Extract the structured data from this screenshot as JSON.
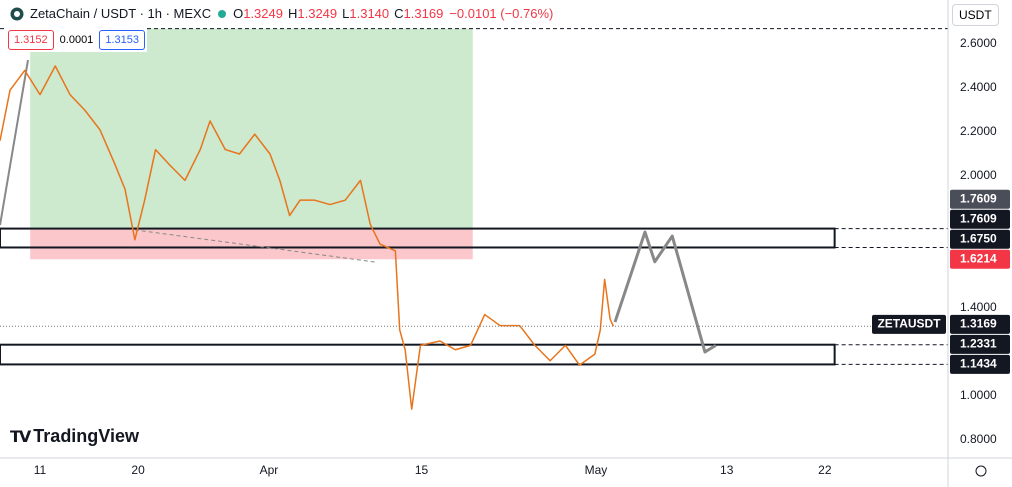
{
  "header": {
    "symbol": "ZetaChain / USDT · 1h · MEXC",
    "ohlc": [
      {
        "key": "O",
        "value": "1.3249"
      },
      {
        "key": "H",
        "value": "1.3249"
      },
      {
        "key": "L",
        "value": "1.3140"
      },
      {
        "key": "C",
        "value": "1.3169"
      }
    ],
    "change": "−0.0101 (−0.76%)",
    "bid": "1.3152",
    "spread": "0.0001",
    "ask": "1.3153",
    "currency": "USDT",
    "brand": "TradingView"
  },
  "chart_data": {
    "type": "line",
    "x": [
      6.33,
      7.25,
      8.6,
      10,
      11.4,
      12.75,
      14.1,
      15.5,
      16.9,
      17.8,
      18.7,
      19.6,
      20.6,
      21.9,
      23.3,
      24.7,
      25.6,
      27,
      28.3,
      29.7,
      31.1,
      32,
      32.9,
      33.85,
      35.2,
      36.6,
      38,
      39.4,
      40.3,
      41.2,
      42.6,
      43.0,
      43.5,
      44.1,
      44.9,
      46.7,
      48.1,
      49.5,
      50.8,
      52.2,
      54,
      55.4,
      56.8,
      58.2,
      59.5,
      60.9,
      61.4,
      61.8,
      62.3,
      62.6
    ],
    "series": [
      {
        "name": "ZETAUSDT",
        "color": "#e8741c",
        "values": [
          2.16,
          2.39,
          2.48,
          2.37,
          2.5,
          2.37,
          2.3,
          2.21,
          2.05,
          1.94,
          1.71,
          1.89,
          2.12,
          2.05,
          1.98,
          2.12,
          2.25,
          2.12,
          2.1,
          2.19,
          2.1,
          1.98,
          1.82,
          1.89,
          1.89,
          1.87,
          1.89,
          1.98,
          1.78,
          1.69,
          1.66,
          1.3,
          1.21,
          0.94,
          1.23,
          1.25,
          1.21,
          1.23,
          1.37,
          1.32,
          1.32,
          1.23,
          1.16,
          1.23,
          1.14,
          1.19,
          1.3,
          1.53,
          1.35,
          1.3169
        ]
      }
    ],
    "xlim": [
      6.33,
      93.3
    ],
    "ylim": [
      0.718,
      2.8
    ],
    "xticks": [
      {
        "value": 10,
        "label": "11"
      },
      {
        "value": 19,
        "label": "20"
      },
      {
        "value": 31,
        "label": "Apr"
      },
      {
        "value": 45,
        "label": "15"
      },
      {
        "value": 61,
        "label": "May"
      },
      {
        "value": 73,
        "label": "13"
      },
      {
        "value": 82,
        "label": "22"
      }
    ],
    "yticks": [
      {
        "value": 2.6,
        "label": "2.6000"
      },
      {
        "value": 2.4,
        "label": "2.4000"
      },
      {
        "value": 2.2,
        "label": "2.2000"
      },
      {
        "value": 2.0,
        "label": "2.0000"
      },
      {
        "value": 1.4,
        "label": "1.4000"
      },
      {
        "value": 1.0,
        "label": "1.0000"
      },
      {
        "value": 0.8,
        "label": "0.8000"
      }
    ],
    "grid": false,
    "position": {
      "start": 9.1,
      "end": 49.7,
      "target": 2.67,
      "entry": 1.7609,
      "stop": 1.6214
    },
    "zones": [
      {
        "start": 6.33,
        "end": 82.9,
        "top": 1.7609,
        "bottom": 1.675
      },
      {
        "start": 6.33,
        "end": 82.9,
        "top": 1.2331,
        "bottom": 1.1434
      }
    ],
    "lines": [
      {
        "x": [
          6.33,
          8.9
        ],
        "y": [
          1.777,
          2.527
        ]
      },
      {
        "x": [
          18.7,
          40.7
        ],
        "y": [
          1.755,
          1.609
        ]
      }
    ],
    "projection": {
      "x": [
        62.75,
        65.5,
        66.4,
        68,
        71,
        72
      ],
      "y": [
        1.336,
        1.745,
        1.61,
        1.727,
        1.2,
        1.23
      ]
    },
    "axis_labels": [
      {
        "value": 1.7609,
        "label": "1.7609",
        "color": "#4a4e59"
      },
      {
        "value": 1.7609,
        "label": "1.7609",
        "color": "#131722"
      },
      {
        "value": 1.675,
        "label": "1.6750",
        "color": "#131722"
      },
      {
        "value": 1.6214,
        "label": "1.6214",
        "color": "#f23645"
      },
      {
        "value": 1.3169,
        "label": "1.3169",
        "color": "#131722"
      },
      {
        "value": 1.2331,
        "label": "1.2331",
        "color": "#131722"
      },
      {
        "value": 1.1434,
        "label": "1.1434",
        "color": "#131722"
      }
    ]
  }
}
